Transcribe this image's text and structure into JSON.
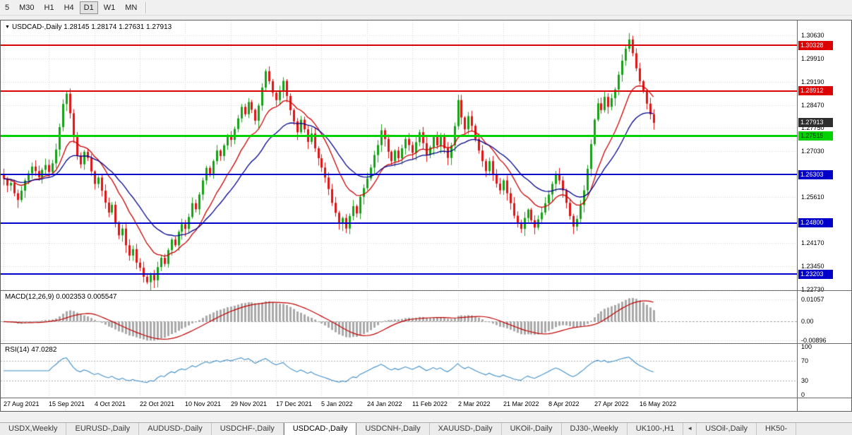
{
  "toolbar": {
    "timeframes": [
      {
        "label": "5",
        "active": false
      },
      {
        "label": "M30",
        "active": false
      },
      {
        "label": "H1",
        "active": false
      },
      {
        "label": "H4",
        "active": false
      },
      {
        "label": "D1",
        "active": true
      },
      {
        "label": "W1",
        "active": false
      },
      {
        "label": "MN",
        "active": false
      }
    ]
  },
  "header": {
    "dropdown_icon": "▼",
    "symbol": "USDCAD-,Daily",
    "quote": "1.28145 1.28174 1.27631 1.27913"
  },
  "chart_data": {
    "type": "candlestick",
    "symbol": "USDCAD-,Daily",
    "timeframe": "Daily",
    "last_quote": {
      "open": 1.28145,
      "high": 1.28174,
      "low": 1.27631,
      "close": 1.27913
    },
    "x_tick_labels": [
      "27 Aug 2021",
      "15 Sep 2021",
      "4 Oct 2021",
      "22 Oct 2021",
      "10 Nov 2021",
      "29 Nov 2021",
      "17 Dec 2021",
      "5 Jan 2022",
      "24 Jan 2022",
      "11 Feb 2022",
      "2 Mar 2022",
      "21 Mar 2022",
      "8 Apr 2022",
      "27 Apr 2022",
      "16 May 2022"
    ],
    "ticks_every": 13,
    "closes": [
      1.2618,
      1.2596,
      1.2604,
      1.2572,
      1.2551,
      1.258,
      1.2612,
      1.2634,
      1.2655,
      1.2641,
      1.2622,
      1.2645,
      1.266,
      1.2638,
      1.2665,
      1.2708,
      1.2778,
      1.285,
      1.2882,
      1.2821,
      1.2748,
      1.2689,
      1.2662,
      1.2701,
      1.2682,
      1.264,
      1.2601,
      1.2621,
      1.258,
      1.2543,
      1.2512,
      1.2536,
      1.2478,
      1.2441,
      1.2462,
      1.241,
      1.2378,
      1.2398,
      1.2356,
      1.234,
      1.2312,
      1.2295,
      1.2318,
      1.2301,
      1.2342,
      1.2371,
      1.2352,
      1.2395,
      1.2428,
      1.241,
      1.2452,
      1.2476,
      1.2461,
      1.2498,
      1.2541,
      1.2522,
      1.2568,
      1.2612,
      1.2651,
      1.2633,
      1.2672,
      1.2705,
      1.2688,
      1.2721,
      1.2752,
      1.2738,
      1.2772,
      1.2805,
      1.2841,
      1.2818,
      1.2856,
      1.2832,
      1.2798,
      1.2845,
      1.2901,
      1.2952,
      1.2921,
      1.2885,
      1.2862,
      1.2891,
      1.2922,
      1.2875,
      1.2831,
      1.2796,
      1.2762,
      1.2801,
      1.2771,
      1.2732,
      1.2758,
      1.2712,
      1.2681,
      1.2652,
      1.2621,
      1.2585,
      1.2542,
      1.2511,
      1.2478,
      1.2495,
      1.2462,
      1.2501,
      1.2532,
      1.2509,
      1.2561,
      1.2588,
      1.2618,
      1.2652,
      1.2691,
      1.2722,
      1.2768,
      1.2741,
      1.2701,
      1.2672,
      1.2705,
      1.2681,
      1.2712,
      1.2741,
      1.2722,
      1.2698,
      1.2731,
      1.2762,
      1.2728,
      1.2692,
      1.2715,
      1.2748,
      1.2721,
      1.2751,
      1.2712,
      1.2682,
      1.2721,
      1.2781,
      1.2862,
      1.2808,
      1.2771,
      1.2812,
      1.2782,
      1.2741,
      1.2705,
      1.2672,
      1.2641,
      1.2672,
      1.2631,
      1.2602,
      1.2581,
      1.2612,
      1.2572,
      1.2541,
      1.2502,
      1.2478,
      1.2461,
      1.2495,
      1.2521,
      1.2488,
      1.2465,
      1.2491,
      1.2512,
      1.2541,
      1.2568,
      1.2601,
      1.2632,
      1.2612,
      1.2581,
      1.2542,
      1.2501,
      1.2468,
      1.2492,
      1.2535,
      1.2581,
      1.2648,
      1.2725,
      1.2801,
      1.2852,
      1.2831,
      1.2872,
      1.2841,
      1.2868,
      1.2895,
      1.2941,
      1.2985,
      1.3022,
      1.3051,
      1.3008,
      1.2961,
      1.2921,
      1.2892,
      1.2851,
      1.2818,
      1.27913
    ],
    "wick_base": 0.0005,
    "wick_var": 0.002,
    "first_open_offset": 0.0012,
    "price_axis": {
      "min": 1.227,
      "max": 1.311,
      "labels": [
        {
          "text": "1.30630",
          "value": 1.3063
        },
        {
          "text": "1.29910",
          "value": 1.2991
        },
        {
          "text": "1.29190",
          "value": 1.2919
        },
        {
          "text": "1.28470",
          "value": 1.2847
        },
        {
          "text": "1.27750",
          "value": 1.2775
        },
        {
          "text": "1.27030",
          "value": 1.2703
        },
        {
          "text": "1.25610",
          "value": 1.2561
        },
        {
          "text": "1.24170",
          "value": 1.2417
        },
        {
          "text": "1.23450",
          "value": 1.2345
        },
        {
          "text": "1.22730",
          "value": 1.2273
        }
      ]
    },
    "levels": [
      {
        "value": 1.30328,
        "label": "1.30328",
        "color": "#dd0000",
        "line_width": 2,
        "text_color": "#ffffff"
      },
      {
        "value": 1.28912,
        "label": "1.28912",
        "color": "#dd0000",
        "line_width": 2,
        "text_color": "#ffffff"
      },
      {
        "value": 1.27515,
        "label": "1.27515",
        "color": "#00d200",
        "line_width": 3,
        "text_color": "#003300"
      },
      {
        "value": 1.26303,
        "label": "1.26303",
        "color": "#0000c8",
        "line_width": 2,
        "text_color": "#ffffff"
      },
      {
        "value": 1.248,
        "label": "1.24800",
        "color": "#0000c8",
        "line_width": 2,
        "text_color": "#ffffff"
      },
      {
        "value": 1.23203,
        "label": "1.23203",
        "color": "#0000c8",
        "line_width": 2,
        "text_color": "#ffffff"
      }
    ],
    "current_price": {
      "value": 1.27913,
      "label": "1.27913",
      "bg": "#2e2e2e",
      "text_color": "#ffffff"
    },
    "moving_averages": [
      {
        "period": 13,
        "color": "#cc0000"
      },
      {
        "period": 26,
        "color": "#00008b"
      }
    ],
    "indicators": {
      "macd": {
        "label": "MACD(12,26,9) 0.002353 0.005547",
        "fast": 12,
        "slow": 26,
        "signal": 9,
        "main_value": 0.002353,
        "signal_value": 0.005547,
        "axis_labels": [
          {
            "text": "0.01057",
            "value": 0.01057
          },
          {
            "text": "0.00",
            "value": 0
          },
          {
            "text": "-0.00896",
            "value": -0.00896
          }
        ]
      },
      "rsi": {
        "label": "RSI(14) 47.0282",
        "period": 14,
        "current": 47.0282,
        "overbought": 70,
        "oversold": 30,
        "axis_labels": [
          {
            "text": "100",
            "value": 100
          },
          {
            "text": "70",
            "value": 70
          },
          {
            "text": "30",
            "value": 30
          },
          {
            "text": "0",
            "value": 0
          }
        ]
      }
    },
    "colors": {
      "up": "#16a016",
      "down": "#e01212",
      "grid": "#d4d4d4",
      "macd_hist": "#a9a9a9",
      "macd_signal": "#c00000",
      "macd_zero": "#a0a0a0",
      "rsi_line": "#3f8ec8",
      "rsi_levels": "#b0b0b0"
    }
  },
  "tab_bar": {
    "items": [
      {
        "label": "USDX,Weekly"
      },
      {
        "label": "EURUSD-,Daily"
      },
      {
        "label": "AUDUSD-,Daily"
      },
      {
        "label": "USDCHF-,Daily"
      },
      {
        "label": "USDCAD-,Daily",
        "active": true
      },
      {
        "label": "USDCNH-,Daily"
      },
      {
        "label": "XAUUSD-,Daily"
      },
      {
        "label": "UKOil-,Daily"
      },
      {
        "label": "DJ30-,Weekly"
      },
      {
        "label": "UK100-,H1"
      },
      {
        "label": "◄",
        "kind": "scroll"
      },
      {
        "label": "USOil-,Daily"
      },
      {
        "label": "HK50-"
      }
    ]
  }
}
